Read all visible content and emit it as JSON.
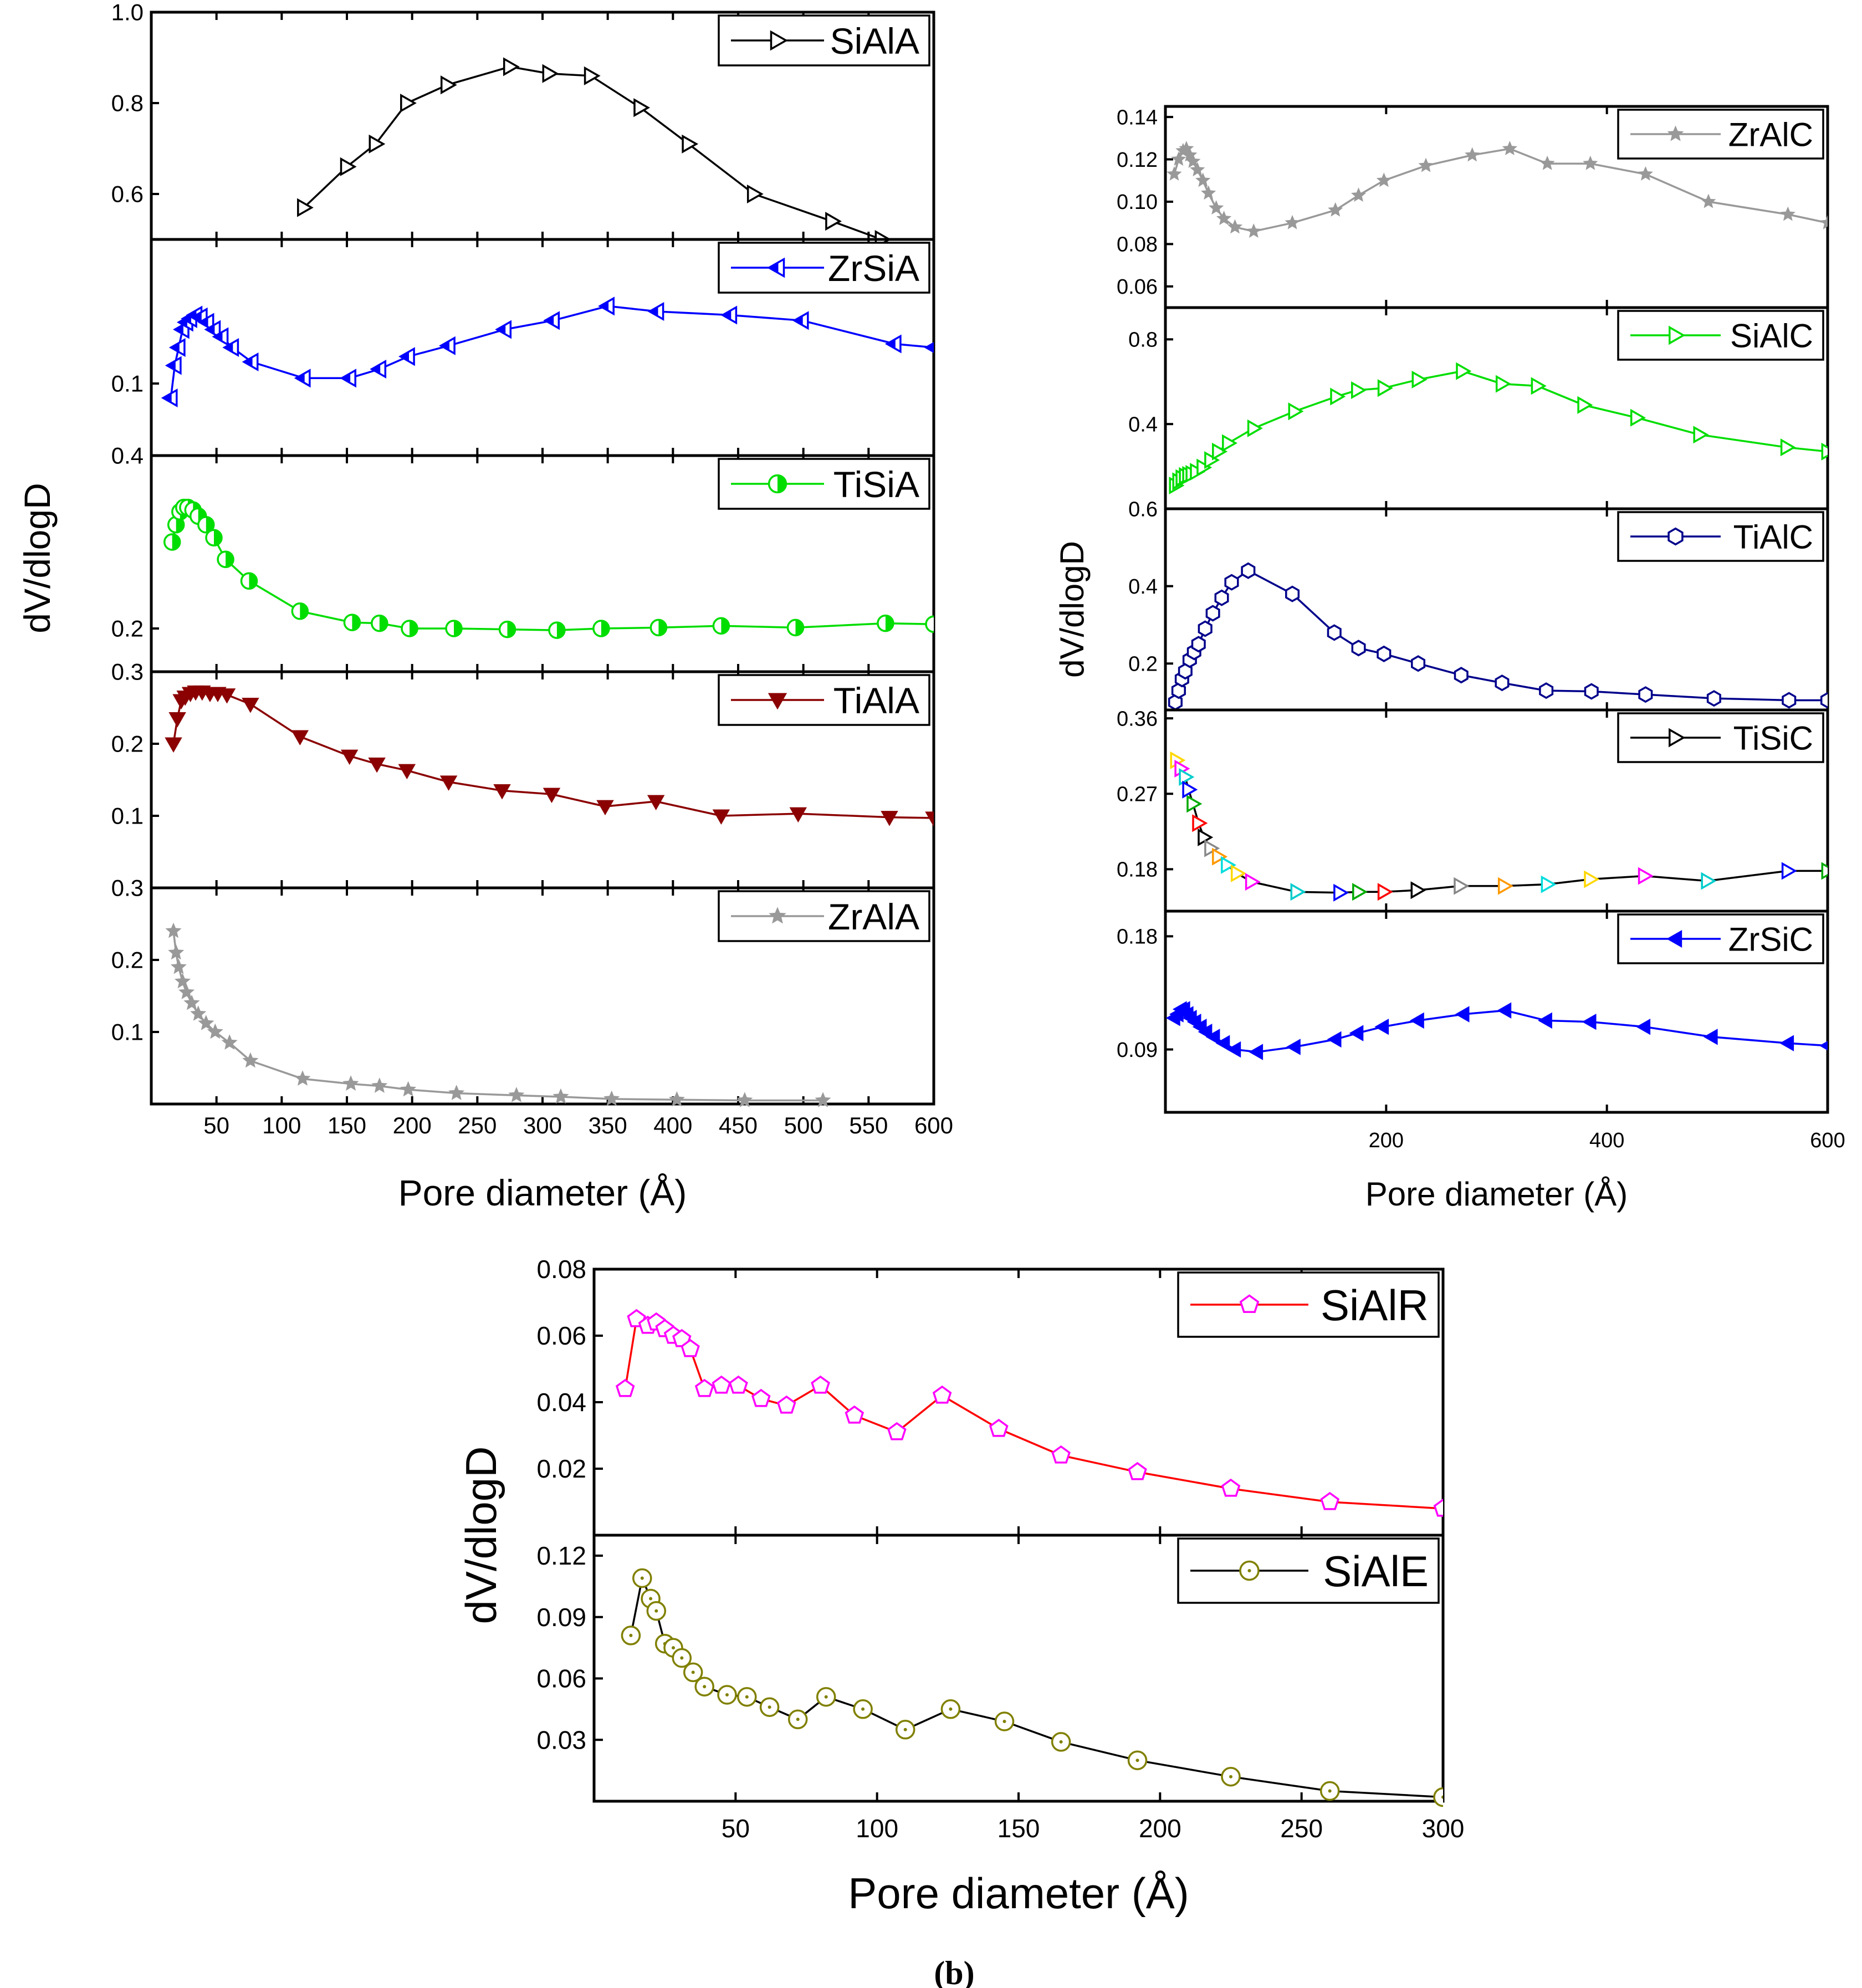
{
  "caption": "(b)",
  "chart_data": [
    {
      "type": "line",
      "id": "left",
      "title": "",
      "xlabel": "Pore diameter (Å)",
      "ylabel": "dV/dlogD",
      "xlim": [
        0,
        600
      ],
      "x_ticks": [
        "50",
        "100",
        "150",
        "200",
        "250",
        "300",
        "350",
        "400",
        "450",
        "500",
        "550",
        "600"
      ],
      "x_tick_values": [
        50,
        100,
        150,
        200,
        250,
        300,
        350,
        400,
        450,
        500,
        550,
        600
      ],
      "panels": [
        {
          "name": "SiAlA",
          "color": "#000000",
          "marker": "triangle-right-open",
          "ylim": [
            0.5,
            1.0
          ],
          "y_ticks": [
            "0.6",
            "0.8",
            "1.0"
          ],
          "y_tick_values": [
            0.6,
            0.8,
            1.0
          ],
          "x": [
            117,
            150,
            172,
            196,
            227,
            275,
            305,
            337,
            375,
            412,
            462,
            522,
            560
          ],
          "y": [
            0.57,
            0.66,
            0.71,
            0.8,
            0.84,
            0.88,
            0.865,
            0.86,
            0.79,
            0.71,
            0.6,
            0.54,
            0.5
          ]
        },
        {
          "name": "ZrSiA",
          "color": "#0000ff",
          "marker": "triangle-left-half",
          "ylim": [
            0.06,
            0.18
          ],
          "y_ticks": [
            "0.1"
          ],
          "y_tick_values": [
            0.1
          ],
          "x": [
            15,
            18,
            21,
            24,
            27,
            30,
            34,
            38,
            43,
            48,
            54,
            62,
            77,
            117,
            152,
            175,
            197,
            228,
            271,
            308,
            350,
            388,
            444,
            499,
            570,
            600
          ],
          "y": [
            0.092,
            0.11,
            0.12,
            0.13,
            0.134,
            0.136,
            0.138,
            0.137,
            0.134,
            0.13,
            0.126,
            0.12,
            0.112,
            0.103,
            0.103,
            0.108,
            0.115,
            0.121,
            0.13,
            0.135,
            0.143,
            0.14,
            0.138,
            0.135,
            0.122,
            0.12
          ]
        },
        {
          "name": "TiSiA",
          "color": "#00dd00",
          "marker": "circle-half",
          "ylim": [
            0.15,
            0.4
          ],
          "y_ticks": [
            "0.2",
            "0.4"
          ],
          "y_tick_values": [
            0.2,
            0.4
          ],
          "x": [
            16,
            19,
            22,
            25,
            28,
            32,
            36,
            42,
            48,
            57,
            75,
            114,
            154,
            175,
            198,
            232,
            273,
            311,
            345,
            389,
            437,
            494,
            563,
            600
          ],
          "y": [
            0.3,
            0.32,
            0.335,
            0.34,
            0.34,
            0.337,
            0.33,
            0.32,
            0.305,
            0.28,
            0.255,
            0.22,
            0.207,
            0.206,
            0.2,
            0.2,
            0.199,
            0.198,
            0.2,
            0.201,
            0.203,
            0.201,
            0.206,
            0.205
          ]
        },
        {
          "name": "TiAlA",
          "color": "#8b0000",
          "marker": "triangle-down-filled",
          "ylim": [
            0.0,
            0.3
          ],
          "y_ticks": [
            "0.1",
            "0.2",
            "0.3"
          ],
          "y_tick_values": [
            0.1,
            0.2,
            0.3
          ],
          "x": [
            17,
            20,
            23,
            26,
            30,
            34,
            39,
            45,
            51,
            58,
            76,
            114,
            152,
            173,
            196,
            228,
            269,
            307,
            348,
            387,
            437,
            496,
            566,
            600
          ],
          "y": [
            0.2,
            0.235,
            0.26,
            0.265,
            0.27,
            0.272,
            0.272,
            0.27,
            0.27,
            0.268,
            0.255,
            0.21,
            0.183,
            0.172,
            0.163,
            0.147,
            0.135,
            0.13,
            0.113,
            0.12,
            0.1,
            0.103,
            0.098,
            0.097
          ]
        },
        {
          "name": "ZrAlA",
          "color": "#999999",
          "marker": "star-filled",
          "ylim": [
            0.0,
            0.3
          ],
          "y_ticks": [
            "0.1",
            "0.2",
            "0.3"
          ],
          "y_tick_values": [
            0.1,
            0.2,
            0.3
          ],
          "x": [
            17,
            19,
            21,
            24,
            27,
            31,
            36,
            42,
            49,
            60,
            76,
            116,
            153,
            175,
            197,
            234,
            280,
            314,
            353,
            403,
            455,
            515
          ],
          "y": [
            0.24,
            0.21,
            0.19,
            0.17,
            0.155,
            0.14,
            0.125,
            0.112,
            0.1,
            0.085,
            0.06,
            0.035,
            0.028,
            0.025,
            0.02,
            0.015,
            0.012,
            0.01,
            0.007,
            0.006,
            0.005,
            0.005
          ]
        }
      ]
    },
    {
      "type": "line",
      "id": "right",
      "title": "",
      "xlabel": "Pore diameter (Å)",
      "ylabel": "dV/dlogD",
      "xlim": [
        0,
        600
      ],
      "x_ticks": [
        "200",
        "400",
        "600"
      ],
      "x_tick_values": [
        200,
        400,
        600
      ],
      "panels": [
        {
          "name": "ZrAlC",
          "color": "#999999",
          "marker": "star-filled",
          "ylim": [
            0.05,
            0.145
          ],
          "y_ticks": [
            "0.06",
            "0.08",
            "0.10",
            "0.12",
            "0.14"
          ],
          "y_tick_values": [
            0.06,
            0.08,
            0.1,
            0.12,
            0.14
          ],
          "x": [
            8,
            12,
            16,
            19,
            22,
            25,
            29,
            34,
            39,
            46,
            53,
            63,
            80,
            115,
            154,
            175,
            198,
            236,
            278,
            312,
            346,
            385,
            435,
            492,
            564,
            600
          ],
          "y": [
            0.113,
            0.12,
            0.124,
            0.125,
            0.122,
            0.119,
            0.115,
            0.11,
            0.104,
            0.097,
            0.092,
            0.088,
            0.086,
            0.09,
            0.096,
            0.103,
            0.11,
            0.117,
            0.122,
            0.125,
            0.118,
            0.118,
            0.113,
            0.1,
            0.094,
            0.09
          ]
        },
        {
          "name": "SiAlC",
          "color": "#00dd00",
          "marker": "triangle-right-open",
          "ylim": [
            0.0,
            0.95
          ],
          "y_ticks": [
            "0.4",
            "0.8"
          ],
          "y_tick_values": [
            0.4,
            0.8
          ],
          "x": [
            9,
            12,
            15,
            18,
            21,
            24,
            28,
            34,
            41,
            48,
            57,
            80,
            117,
            155,
            174,
            198,
            229,
            269,
            305,
            337,
            379,
            427,
            484,
            563,
            600
          ],
          "y": [
            0.11,
            0.13,
            0.145,
            0.155,
            0.16,
            0.165,
            0.175,
            0.195,
            0.23,
            0.27,
            0.31,
            0.38,
            0.46,
            0.53,
            0.56,
            0.57,
            0.61,
            0.65,
            0.59,
            0.58,
            0.49,
            0.43,
            0.35,
            0.29,
            0.27
          ]
        },
        {
          "name": "TiAlC",
          "color": "#00008b",
          "marker": "hexagon-open",
          "ylim": [
            0.08,
            0.6
          ],
          "y_ticks": [
            "0.2",
            "0.4",
            "0.6"
          ],
          "y_tick_values": [
            0.2,
            0.4,
            0.6
          ],
          "x": [
            9,
            12,
            15,
            18,
            22,
            26,
            30,
            36,
            43,
            51,
            60,
            75,
            115,
            153,
            175,
            198,
            229,
            268,
            305,
            345,
            386,
            435,
            497,
            565,
            600
          ],
          "y": [
            0.1,
            0.13,
            0.16,
            0.18,
            0.21,
            0.23,
            0.25,
            0.29,
            0.33,
            0.37,
            0.41,
            0.44,
            0.38,
            0.28,
            0.24,
            0.225,
            0.2,
            0.17,
            0.15,
            0.13,
            0.128,
            0.12,
            0.11,
            0.105,
            0.105
          ]
        },
        {
          "name": "TiSiC",
          "color": "#000000",
          "marker": "triangle-right-open-multicolor",
          "ylim": [
            0.13,
            0.37
          ],
          "y_ticks": [
            "0.18",
            "0.27",
            "0.36"
          ],
          "y_tick_values": [
            0.18,
            0.27,
            0.36
          ],
          "x": [
            10,
            14,
            18,
            21,
            25,
            30,
            35,
            41,
            48,
            56,
            65,
            78,
            119,
            158,
            175,
            198,
            228,
            267,
            307,
            346,
            385,
            434,
            491,
            564,
            600
          ],
          "y": [
            0.31,
            0.3,
            0.29,
            0.275,
            0.258,
            0.235,
            0.218,
            0.205,
            0.195,
            0.185,
            0.175,
            0.165,
            0.153,
            0.152,
            0.153,
            0.153,
            0.155,
            0.16,
            0.16,
            0.162,
            0.168,
            0.172,
            0.166,
            0.178,
            0.178
          ]
        },
        {
          "name": "ZrSiC",
          "color": "#0000ff",
          "marker": "triangle-left-filled",
          "ylim": [
            0.04,
            0.2
          ],
          "y_ticks": [
            "0.09",
            "0.18"
          ],
          "y_tick_values": [
            0.09,
            0.18
          ],
          "x": [
            8,
            11,
            14,
            17,
            20,
            23,
            27,
            32,
            37,
            44,
            53,
            63,
            83,
            117,
            154,
            174,
            197,
            229,
            270,
            308,
            345,
            385,
            434,
            495,
            564,
            600
          ],
          "y": [
            0.115,
            0.118,
            0.122,
            0.122,
            0.118,
            0.115,
            0.112,
            0.108,
            0.104,
            0.1,
            0.095,
            0.09,
            0.088,
            0.092,
            0.098,
            0.103,
            0.108,
            0.113,
            0.118,
            0.121,
            0.113,
            0.112,
            0.108,
            0.1,
            0.095,
            0.093
          ]
        }
      ]
    },
    {
      "type": "line",
      "id": "bottom",
      "title": "",
      "xlabel": "Pore diameter (Å)",
      "ylabel": "dV/dlogD",
      "xlim": [
        0,
        300
      ],
      "x_ticks": [
        "50",
        "100",
        "150",
        "200",
        "250",
        "300"
      ],
      "x_tick_values": [
        50,
        100,
        150,
        200,
        250,
        300
      ],
      "panels": [
        {
          "name": "SiAlR",
          "color": "#ff0000",
          "marker": "pentagon-open",
          "marker_color": "#ff00ff",
          "ylim": [
            0.0,
            0.08
          ],
          "y_ticks": [
            "0.02",
            "0.04",
            "0.06",
            "0.08"
          ],
          "y_tick_values": [
            0.02,
            0.04,
            0.06,
            0.08
          ],
          "x": [
            11,
            15,
            19,
            22,
            25,
            28,
            31,
            34,
            39,
            45,
            51,
            59,
            68,
            80,
            92,
            107,
            123,
            143,
            165,
            192,
            225,
            260,
            300
          ],
          "y": [
            0.044,
            0.065,
            0.063,
            0.064,
            0.062,
            0.06,
            0.059,
            0.056,
            0.044,
            0.045,
            0.045,
            0.041,
            0.039,
            0.045,
            0.036,
            0.031,
            0.042,
            0.032,
            0.024,
            0.019,
            0.014,
            0.01,
            0.008
          ]
        },
        {
          "name": "SiAlE",
          "color": "#000000",
          "marker": "circle-dot-open",
          "marker_color": "#808000",
          "ylim": [
            0.0,
            0.13
          ],
          "y_ticks": [
            "0.03",
            "0.06",
            "0.09",
            "0.12"
          ],
          "y_tick_values": [
            0.03,
            0.06,
            0.09,
            0.12
          ],
          "x": [
            13,
            17,
            20,
            22,
            25,
            28,
            31,
            35,
            39,
            47,
            54,
            62,
            72,
            82,
            95,
            110,
            126,
            145,
            165,
            192,
            225,
            260,
            300
          ],
          "y": [
            0.081,
            0.109,
            0.099,
            0.093,
            0.077,
            0.075,
            0.07,
            0.063,
            0.056,
            0.052,
            0.051,
            0.046,
            0.04,
            0.051,
            0.045,
            0.035,
            0.045,
            0.039,
            0.029,
            0.02,
            0.012,
            0.005,
            0.002
          ]
        }
      ]
    }
  ]
}
